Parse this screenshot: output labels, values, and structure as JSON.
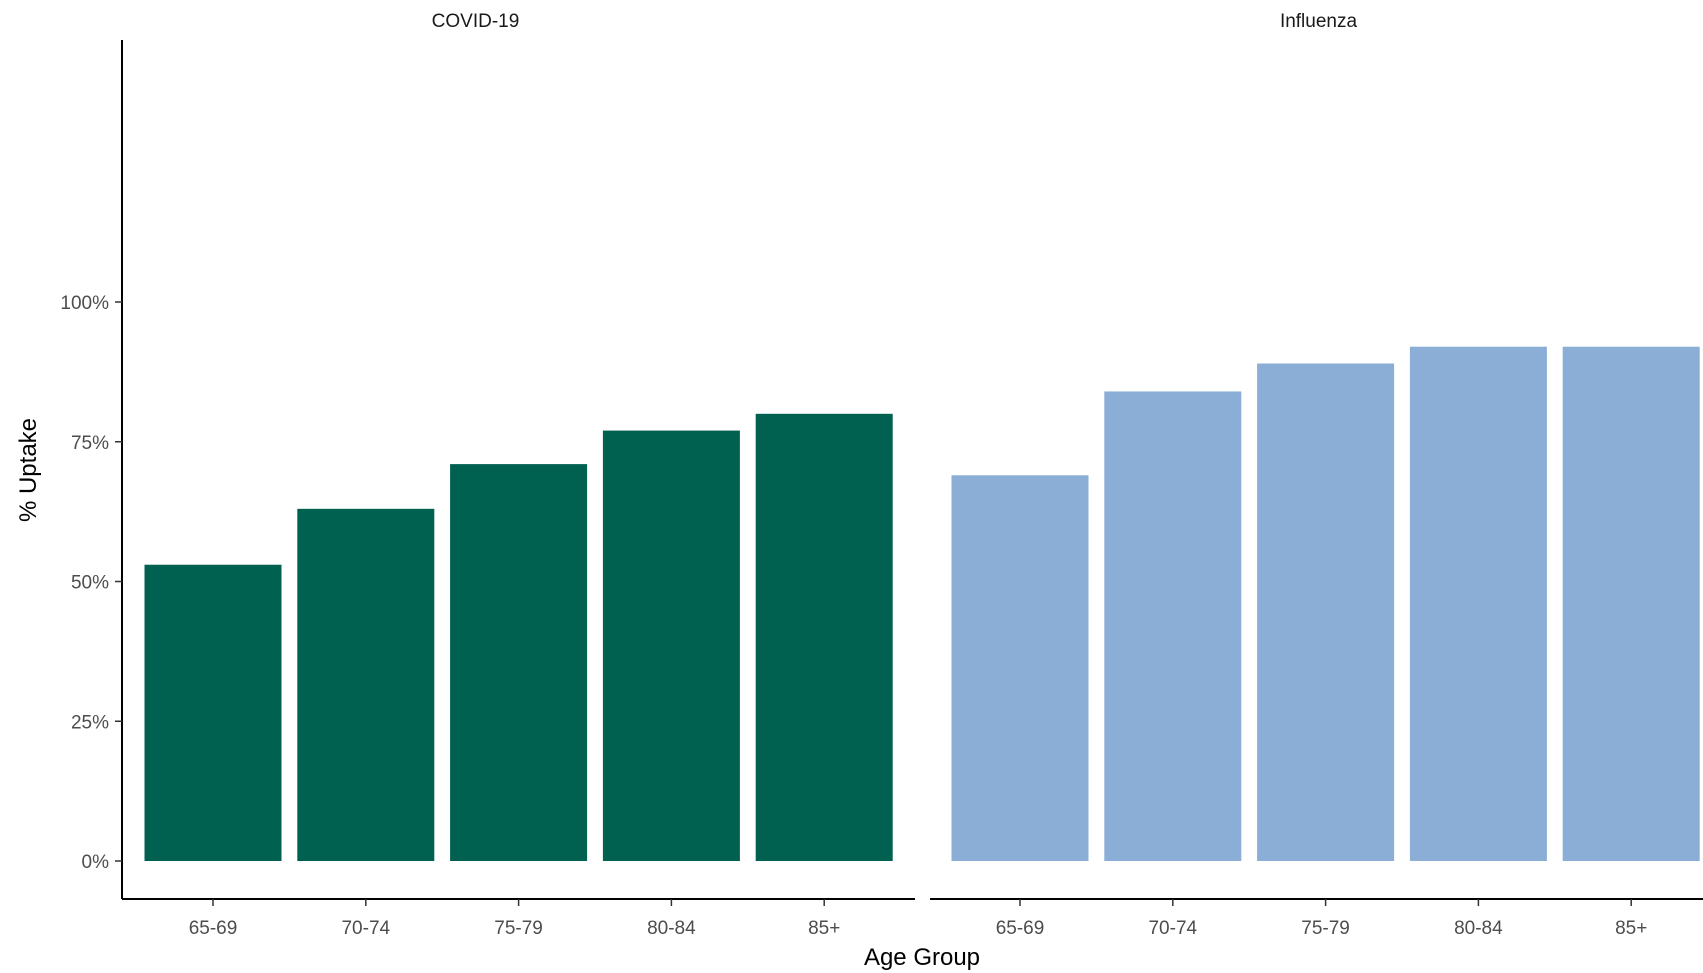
{
  "chart_data": {
    "type": "bar",
    "xlabel": "Age Group",
    "ylabel": "% Uptake",
    "ylim": [
      0,
      100
    ],
    "yticks": [
      "0%",
      "25%",
      "50%",
      "75%",
      "100%"
    ],
    "ytick_values": [
      0,
      25,
      50,
      75,
      100
    ],
    "grid": false,
    "categories": [
      "65-69",
      "70-74",
      "75-79",
      "80-84",
      "85+"
    ],
    "panels": [
      {
        "title": "COVID-19",
        "color": "#006150",
        "values": [
          53,
          63,
          71,
          77,
          80
        ]
      },
      {
        "title": "Influenza",
        "color": "#8aaed6",
        "values": [
          69,
          84,
          89,
          92,
          92
        ]
      }
    ]
  }
}
